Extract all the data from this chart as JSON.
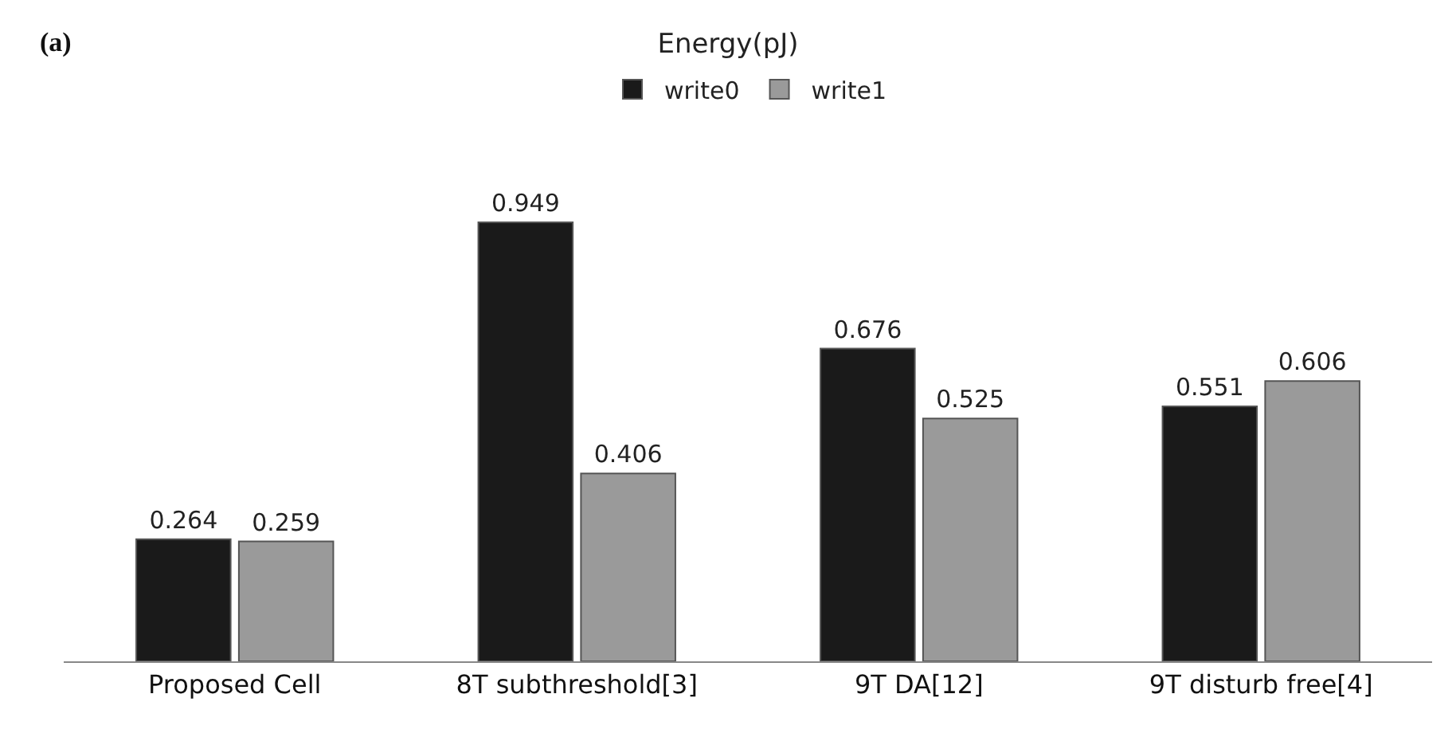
{
  "chart_data": {
    "type": "bar",
    "title": "Energy(pJ)",
    "annotations": [
      "(a)"
    ],
    "categories": [
      "Proposed Cell",
      "8T subthreshold[3]",
      "9T DA[12]",
      "9T disturb free[4]"
    ],
    "series": [
      {
        "name": "write0",
        "color": "#1a1a1a",
        "values": [
          0.264,
          0.949,
          0.676,
          0.551
        ]
      },
      {
        "name": "write1",
        "color": "#9a9a9a",
        "values": [
          0.259,
          0.406,
          0.525,
          0.606
        ]
      }
    ],
    "data_labels": true,
    "legend": "top"
  }
}
